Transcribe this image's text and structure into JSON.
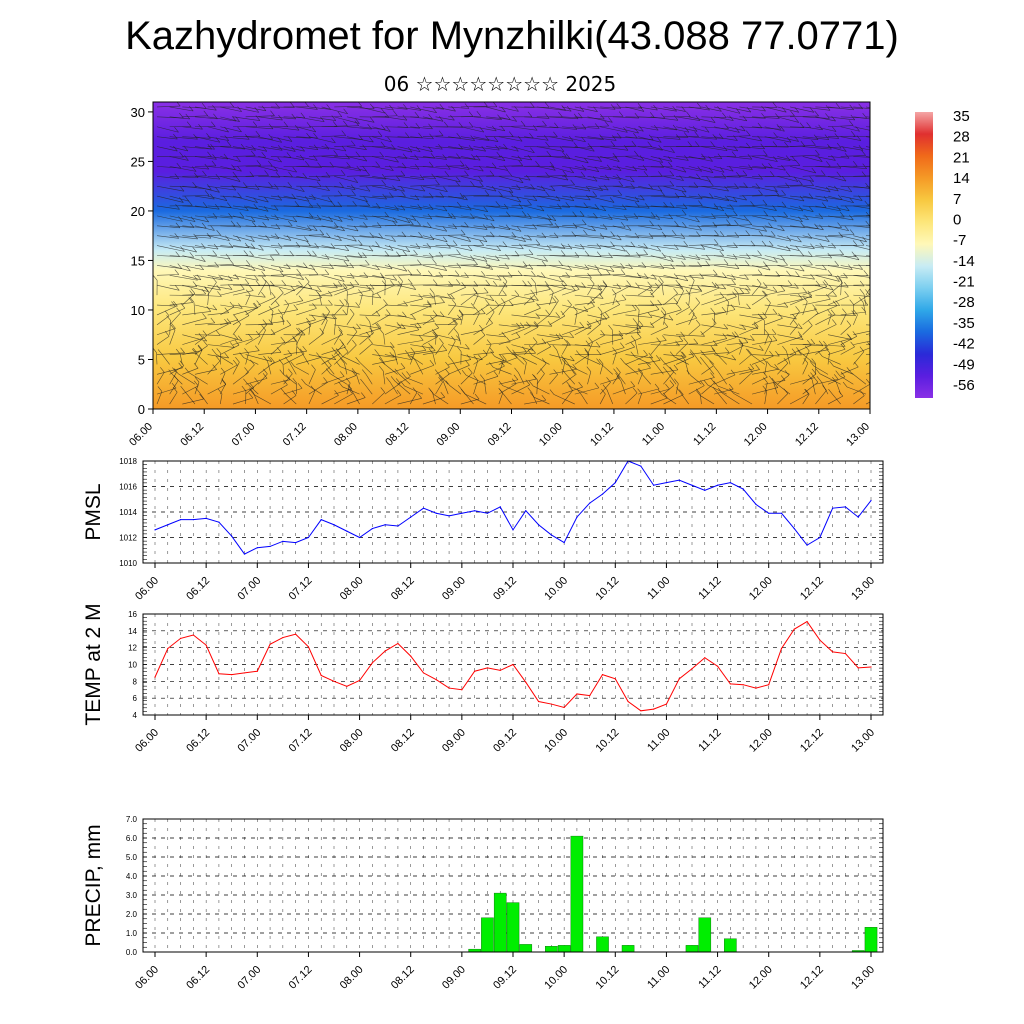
{
  "header": {
    "title": "Kazhydromet for Mynzhilki(43.088 77.0771)",
    "subtitle": "06 ☆☆☆☆☆☆☆☆ 2025"
  },
  "chart_data": [
    {
      "type": "heatmap",
      "title": "",
      "x_tick_labels": [
        "06.00",
        "06.12",
        "07.00",
        "07.12",
        "08.00",
        "08.12",
        "09.00",
        "09.12",
        "10.00",
        "10.12",
        "11.00",
        "11.12",
        "12.00",
        "12.12",
        "13.00"
      ],
      "ylim": [
        0,
        31
      ],
      "y_ticks": [
        0,
        5,
        10,
        15,
        20,
        25,
        30
      ],
      "colorbar_labels": [
        "35",
        "28",
        "21",
        "14",
        "7",
        "0",
        "-7",
        "-14",
        "-21",
        "-28",
        "-35",
        "-42",
        "-49",
        "-56"
      ],
      "colors": [
        "#f4a6a6",
        "#e03030",
        "#f06a1a",
        "#f59a26",
        "#f8c840",
        "#fde67a",
        "#fff8b8",
        "#c8ecf4",
        "#7ccff0",
        "#30a8e8",
        "#1a6ae0",
        "#2a2ad8",
        "#5a1ee0",
        "#8a30e6"
      ],
      "color_levels": [
        {
          "height": 0,
          "value": 14
        },
        {
          "height": 5,
          "value": 10
        },
        {
          "height": 10,
          "value": 2
        },
        {
          "height": 14,
          "value": -8
        },
        {
          "height": 16,
          "value": -17
        },
        {
          "height": 20,
          "value": -32
        },
        {
          "height": 24,
          "value": -46
        },
        {
          "height": 27,
          "value": -52
        },
        {
          "height": 31,
          "value": -58
        }
      ],
      "overlay": "wind barbs"
    },
    {
      "type": "line",
      "ylabel": "PMSL",
      "ylim": [
        1010,
        1018
      ],
      "y_ticks": [
        1010,
        1012,
        1014,
        1016,
        1018
      ],
      "x_tick_labels": [
        "06.00",
        "06.12",
        "07.00",
        "07.12",
        "08.00",
        "08.12",
        "09.00",
        "09.12",
        "10.00",
        "10.12",
        "11.00",
        "11.12",
        "12.00",
        "12.12",
        "13.00"
      ],
      "color": "#0000ff",
      "values": [
        1012.6,
        1013.0,
        1013.4,
        1013.4,
        1013.5,
        1013.2,
        1012.1,
        1010.7,
        1011.2,
        1011.3,
        1011.7,
        1011.6,
        1012.0,
        1013.4,
        1013.0,
        1012.5,
        1012.0,
        1012.7,
        1013.0,
        1012.9,
        1013.6,
        1014.3,
        1013.9,
        1013.7,
        1013.9,
        1014.1,
        1013.9,
        1014.4,
        1012.6,
        1014.1,
        1013.0,
        1012.2,
        1011.6,
        1013.6,
        1014.7,
        1015.4,
        1016.3,
        1018.0,
        1017.6,
        1016.1,
        1016.3,
        1016.5,
        1016.1,
        1015.7,
        1016.1,
        1016.3,
        1015.8,
        1014.6,
        1013.9,
        1013.9,
        1012.7,
        1011.4,
        1012.0,
        1014.3,
        1014.4,
        1013.6,
        1014.9
      ]
    },
    {
      "type": "line",
      "ylabel": "TEMP at 2 M",
      "ylim": [
        4,
        16
      ],
      "y_ticks": [
        4,
        6,
        8,
        10,
        12,
        14,
        16
      ],
      "x_tick_labels": [
        "06.00",
        "06.12",
        "07.00",
        "07.12",
        "08.00",
        "08.12",
        "09.00",
        "09.12",
        "10.00",
        "10.12",
        "11.00",
        "11.12",
        "12.00",
        "12.12",
        "13.00"
      ],
      "color": "#ff0000",
      "values": [
        8.5,
        11.9,
        13.1,
        13.5,
        12.3,
        8.9,
        8.8,
        9.0,
        9.2,
        12.4,
        13.2,
        13.6,
        12.1,
        8.7,
        8.0,
        7.4,
        8.1,
        10.2,
        11.6,
        12.5,
        11.0,
        9.0,
        8.2,
        7.2,
        7.0,
        9.2,
        9.6,
        9.3,
        10.0,
        7.9,
        5.6,
        5.3,
        4.9,
        6.5,
        6.3,
        8.8,
        8.3,
        5.6,
        4.5,
        4.7,
        5.3,
        8.3,
        9.5,
        10.8,
        9.8,
        7.7,
        7.6,
        7.2,
        7.6,
        11.9,
        14.2,
        15.1,
        12.9,
        11.5,
        11.3,
        9.6,
        9.7
      ]
    },
    {
      "type": "bar",
      "ylabel": "PRECIP, mm",
      "ylim": [
        0,
        7
      ],
      "y_tick_labels": [
        "0.0",
        "1.0",
        "2.0",
        "3.0",
        "4.0",
        "5.0",
        "6.0",
        "7.0"
      ],
      "x_tick_labels": [
        "06.00",
        "06.12",
        "07.00",
        "07.12",
        "08.00",
        "08.12",
        "09.00",
        "09.12",
        "10.00",
        "10.12",
        "11.00",
        "11.12",
        "12.00",
        "12.12",
        "13.00"
      ],
      "color": "#00ee00",
      "values": [
        0,
        0,
        0,
        0,
        0,
        0,
        0,
        0,
        0,
        0,
        0,
        0,
        0,
        0,
        0,
        0,
        0,
        0,
        0,
        0,
        0,
        0,
        0,
        0,
        0,
        0.15,
        1.8,
        3.1,
        2.6,
        0.4,
        0,
        0.3,
        0.35,
        6.1,
        0,
        0.8,
        0,
        0.35,
        0,
        0,
        0,
        0,
        0.35,
        1.8,
        0,
        0.7,
        0,
        0,
        0,
        0,
        0,
        0,
        0,
        0,
        0,
        0.08,
        1.3
      ]
    }
  ]
}
